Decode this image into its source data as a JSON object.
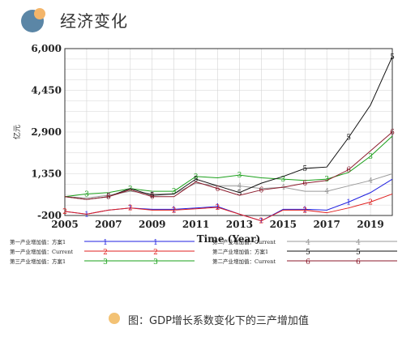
{
  "header": {
    "title": "经济变化",
    "logo_colors": {
      "primary": "#5b86a6",
      "accent": "#f3b56a"
    }
  },
  "caption": {
    "text": "图：GDP增长系数变化下的三产增加值",
    "dot_color": "#f3c274"
  },
  "chart_data": {
    "type": "line",
    "xlabel": "Time (Year)",
    "ylabel": "亿元",
    "x_ticks": [
      "2005",
      "2007",
      "2009",
      "2011",
      "2013",
      "2015",
      "2017",
      "2019"
    ],
    "y_ticks": [
      "6,000",
      "4,450",
      "2,900",
      "1,350",
      "-200"
    ],
    "xlim": [
      2005,
      2020
    ],
    "ylim": [
      -200,
      6000
    ],
    "grid": true,
    "legend_position": "bottom",
    "x": [
      2005,
      2006,
      2007,
      2008,
      2009,
      2010,
      2011,
      2012,
      2013,
      2014,
      2015,
      2016,
      2017,
      2018,
      2019,
      2020
    ],
    "series": [
      {
        "name": "第一产业增加值：方案1",
        "marker": "1",
        "color": "#1f1fe0",
        "values": [
          -50,
          -150,
          0,
          80,
          30,
          30,
          80,
          130,
          -150,
          -400,
          30,
          30,
          0,
          300,
          650,
          1150
        ]
      },
      {
        "name": "第一产业增加值：Current",
        "marker": "2",
        "color": "#e0201f",
        "values": [
          -50,
          -150,
          0,
          80,
          0,
          0,
          50,
          100,
          -150,
          -400,
          0,
          0,
          -100,
          80,
          300,
          600
        ]
      },
      {
        "name": "第三产业增加值：方案1",
        "marker": "3",
        "color": "#1aa01a",
        "values": [
          500,
          600,
          650,
          800,
          700,
          700,
          1250,
          1200,
          1300,
          1200,
          1150,
          1100,
          1150,
          1400,
          2000,
          2750
        ]
      },
      {
        "name": "第二产业增加值：Current",
        "marker": "4",
        "color": "#9a9a9a",
        "values": [
          500,
          450,
          550,
          700,
          600,
          600,
          1000,
          900,
          900,
          800,
          850,
          700,
          700,
          900,
          1100,
          1350
        ]
      },
      {
        "name": "第二产业增加值：方案1",
        "marker": "5",
        "color": "#111111",
        "values": [
          500,
          400,
          500,
          800,
          550,
          600,
          1150,
          900,
          650,
          1000,
          1250,
          1550,
          1600,
          2700,
          3900,
          5700
        ]
      },
      {
        "name": "第二产业增加值：Current",
        "marker": "6",
        "color": "#8b1a2b",
        "values": [
          500,
          400,
          500,
          750,
          500,
          500,
          1050,
          800,
          550,
          750,
          850,
          1000,
          1100,
          1500,
          2200,
          2900
        ]
      }
    ]
  }
}
